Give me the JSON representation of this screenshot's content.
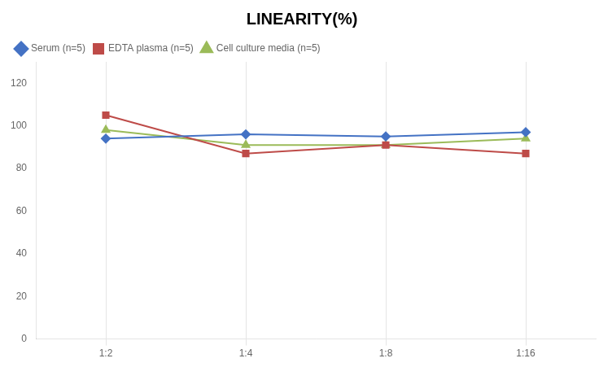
{
  "chart_data": {
    "type": "line",
    "title": "LINEARITY(%)",
    "categories": [
      "1:2",
      "1:4",
      "1:8",
      "1:16"
    ],
    "series": [
      {
        "name": "Serum (n=5)",
        "color": "#4472C4",
        "marker": "diamond",
        "values": [
          94,
          96,
          95,
          97
        ]
      },
      {
        "name": "EDTA plasma (n=5)",
        "color": "#BE4B48",
        "marker": "square",
        "values": [
          105,
          87,
          91,
          87
        ]
      },
      {
        "name": "Cell culture media (n=5)",
        "color": "#9BBB59",
        "marker": "triangle",
        "values": [
          98,
          91,
          91,
          94
        ]
      }
    ],
    "ylim": [
      0,
      130
    ],
    "yticks": [
      0,
      20,
      40,
      60,
      80,
      100,
      120
    ],
    "grid": "x",
    "legend": "upper left"
  }
}
